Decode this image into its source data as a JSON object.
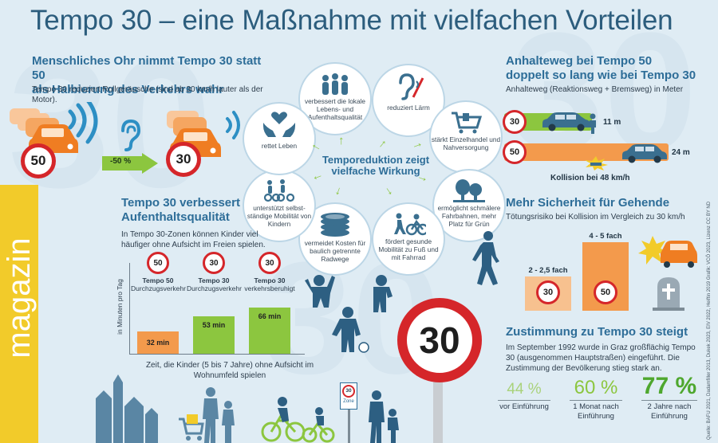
{
  "title": "Tempo 30 – eine Maßnahme mit vielfachen Vorteilen",
  "ear_section": {
    "heading_line1": "Menschliches Ohr nimmt Tempo 30 statt 50",
    "heading_line2": "als Halbierung des Verkehrs wahr",
    "text": "Tempo 30 reduziert Rollgeräusche (sind ab 30 km/h lauter als der Motor).",
    "sign_before": "50",
    "sign_after": "30",
    "reduction": "-50 %"
  },
  "wheel": {
    "center_line1": "Temporeduktion zeigt",
    "center_line2": "vielfache Wirkung",
    "items": [
      {
        "label": "verbessert die lokale Lebens- und Aufenthaltsqualität",
        "icon": "people-group-icon"
      },
      {
        "label": "reduziert Lärm",
        "icon": "no-noise-ear-icon"
      },
      {
        "label": "stärkt Einzelhandel und Nahversorgung",
        "icon": "shopping-cart-icon"
      },
      {
        "label": "ermöglicht schmälere Fahrbahnen, mehr Platz für Grün",
        "icon": "trees-icon"
      },
      {
        "label": "fördert gesunde Mobilität zu Fuß und mit Fahrrad",
        "icon": "walker-cyclist-icon"
      },
      {
        "label": "vermeidet Kosten für baulich getrennte Radwege",
        "icon": "coins-icon"
      },
      {
        "label": "unterstützt selbst-ständige Mobilität von Kindern",
        "icon": "children-cycling-icon"
      },
      {
        "label": "rettet Leben",
        "icon": "heart-hands-icon"
      }
    ]
  },
  "stopping": {
    "heading_line1": "Anhalteweg bei Tempo 50",
    "heading_line2": "doppelt so lang wie bei Tempo 30",
    "text": "Anhalteweg (Reaktionsweg + Bremsweg) in Meter",
    "row30_sign": "30",
    "row30_value": "11 m",
    "row50_sign": "50",
    "row50_value": "24 m",
    "collision": "Kollision bei 48 km/h"
  },
  "quality": {
    "heading_line1": "Tempo 30 verbessert",
    "heading_line2": "Aufenthaltsqualität",
    "text": "In Tempo 30-Zonen können Kinder viel häufiger ohne Aufsicht im Freien spielen.",
    "ylabel": "in Minuten pro Tag",
    "caption": "Zeit, die Kinder (5 bis 7 Jahre) ohne Aufsicht im Wohnumfeld spielen"
  },
  "chart_data": [
    {
      "type": "bar",
      "categories": [
        "Tempo 50 Durchzugsverkehr",
        "Tempo 30 Durchzugsverkehr",
        "Tempo 30 verkehrsberuhigt"
      ],
      "signs": [
        "50",
        "30",
        "30"
      ],
      "cat_titles": [
        "Tempo 50",
        "Tempo 30",
        "Tempo 30"
      ],
      "cat_subs": [
        "Durchzugsverkehr",
        "Durchzugsverkehr",
        "verkehrsberuhigt"
      ],
      "values": [
        32,
        53,
        66
      ],
      "value_labels": [
        "32 min",
        "53 min",
        "66 min"
      ],
      "colors": [
        "#f39a4c",
        "#8cc63f",
        "#8cc63f"
      ],
      "ylabel": "in Minuten pro Tag"
    },
    {
      "type": "bar",
      "categories": [
        "30",
        "50"
      ],
      "values": [
        2.25,
        4.5
      ],
      "value_labels": [
        "2 - 2,5 fach",
        "4 - 5 fach"
      ],
      "colors": [
        "#f7c18f",
        "#f39a4c"
      ]
    }
  ],
  "safety": {
    "heading": "Mehr Sicherheit für Gehende",
    "text": "Tötungsrisiko bei Kollision im Vergleich zu 30 km/h"
  },
  "approval": {
    "heading": "Zustimmung zu Tempo 30 steigt",
    "text": "Im September 1992 wurde in Graz großflächig Tempo 30 (ausgenommen Hauptstraßen) eingeführt. Die Zustimmung der Bevölkerung stieg stark an.",
    "stats": [
      {
        "value": "44 %",
        "label": "vor Einführung",
        "color": "#a9d27b"
      },
      {
        "value": "60 %",
        "label": "1 Monat nach Einführung",
        "color": "#8cc63f"
      },
      {
        "value": "77 %",
        "label": "2 Jahre nach Einführung",
        "color": "#4ea72e"
      }
    ]
  },
  "big_sign": "30",
  "zone_sign": {
    "number": "30",
    "label": "Zone"
  },
  "magazin_label": "magazin",
  "source": "Quelle: BAFU 2021, Dadamfiller 2013, Dukek 2023, EIV 2022, Heiftin 2019 Grafik: VCÖ 2023, Lizenz CC BY ND"
}
